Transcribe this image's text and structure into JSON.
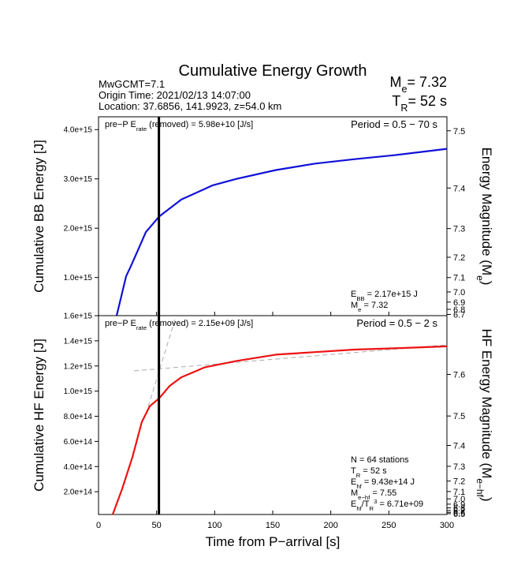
{
  "header": {
    "title": "Cumulative Energy Growth",
    "lines": [
      "MwGCMT=7.1",
      "Origin Time: 2021/02/13 14:07:00",
      "Location: 37.6856, 141.9923, z=54.0 km"
    ],
    "magnitude": [
      {
        "text": "M"
      },
      {
        "text": "e",
        "sub": true
      },
      {
        "text": "= 7.32"
      }
    ],
    "duration": [
      {
        "text": "T"
      },
      {
        "text": "R",
        "sub": true
      },
      {
        "text": "= 52 s"
      }
    ]
  },
  "chart_data": [
    {
      "type": "line",
      "ylabel": "Cumulative BB Energy [J]",
      "y2label": [
        {
          "text": "Energy Magnitude (M"
        },
        {
          "text": "e",
          "sub": true
        },
        {
          "text": ")"
        }
      ],
      "annotation_left": [
        {
          "text": "pre−P E"
        },
        {
          "text": "rate",
          "sub": true
        },
        {
          "text": " (removed) = 5.98e+10 [J/s]"
        }
      ],
      "annotation_right": "Period = 0.5 − 70 s",
      "notes": [
        [
          {
            "text": "E"
          },
          {
            "text": "BB",
            "sub": true
          },
          {
            "text": " = 2.17e+15 J"
          }
        ],
        [
          {
            "text": "M"
          },
          {
            "text": "e",
            "sub": true
          },
          {
            "text": " = 7.32"
          }
        ]
      ],
      "marker_x": 52,
      "xlim": [
        0,
        300
      ],
      "xticks": [
        0,
        50,
        100,
        150,
        200,
        250,
        300
      ],
      "ylim": [
        226000000000000,
        4260000000000000
      ],
      "yticks": [
        {
          "value": 1000000000000000,
          "label": "1.0e+15"
        },
        {
          "value": 2000000000000000,
          "label": "2.0e+15"
        },
        {
          "value": 3000000000000000,
          "label": "3.0e+15"
        },
        {
          "value": 4000000000000000,
          "label": "4.0e+15"
        }
      ],
      "y2scale": "energy-magnitude",
      "y2lim": [
        6.67,
        7.52
      ],
      "y2ticks": [
        6.7,
        6.8,
        6.9,
        {
          "value": 7,
          "label": "7.0"
        },
        7.1,
        7.2,
        7.3,
        7.4,
        7.5
      ],
      "series": [
        {
          "name": "BB",
          "color": "#1010d8",
          "x": [
            15.6,
            23.8,
            27.1,
            33.9,
            40.7,
            52.3,
            71.3,
            98.4,
            118.8,
            152.7,
            186.6,
            220.6,
            254.5,
            300
          ],
          "values": [
            226000000000000,
            1030000000000000,
            1190000000000000,
            1550000000000000,
            1920000000000000,
            2240000000000000,
            2580000000000000,
            2870000000000000,
            3000000000000000,
            3180000000000000,
            3310000000000000,
            3400000000000000,
            3480000000000000,
            3610000000000000
          ]
        }
      ]
    },
    {
      "type": "line",
      "xlabel": "Time from P−arrival [s]",
      "ylabel": "Cumulative HF Energy [J]",
      "y2label": [
        {
          "text": "HF Energy Magnitude (M"
        },
        {
          "text": "e−hf",
          "sub": true
        },
        {
          "text": ")"
        }
      ],
      "annotation_left": [
        {
          "text": "pre−P E"
        },
        {
          "text": "rate",
          "sub": true
        },
        {
          "text": " (removed) = 2.15e+09 [J/s]"
        }
      ],
      "annotation_right": "Period = 0.5 − 2 s",
      "notes": [
        [
          {
            "text": "N = 64 stations"
          }
        ],
        [
          {
            "text": "T"
          },
          {
            "text": "R",
            "sub": true
          },
          {
            "text": " = 52  s"
          }
        ],
        [
          {
            "text": "E"
          },
          {
            "text": "hf",
            "sub": true
          },
          {
            "text": " = 9.43e+14 J"
          }
        ],
        [
          {
            "text": "M"
          },
          {
            "text": "e−hf",
            "sub": true
          },
          {
            "text": " = 7.55"
          }
        ],
        [
          {
            "text": "E"
          },
          {
            "text": "hf",
            "sub": true
          },
          {
            "text": "/T"
          },
          {
            "text": "R",
            "sub": true
          },
          {
            "text": "3",
            "sup": true
          },
          {
            "text": " =  6.71e+09"
          }
        ]
      ],
      "marker_x": 52,
      "xlim": [
        0,
        300
      ],
      "xticks": [
        0,
        50,
        100,
        150,
        200,
        250,
        300
      ],
      "ylim": [
        19000000000000,
        1600000000000000
      ],
      "yticks": [
        {
          "value": 200000000000000,
          "label": "2.0e+14"
        },
        {
          "value": 400000000000000,
          "label": "4.0e+14"
        },
        {
          "value": 600000000000000,
          "label": "6.0e+14"
        },
        {
          "value": 800000000000000,
          "label": "8.0e+14"
        },
        {
          "value": 1000000000000000,
          "label": "1.0e+15"
        },
        {
          "value": 1200000000000000,
          "label": "1.2e+15"
        },
        {
          "value": 1400000000000000,
          "label": "1.4e+15"
        },
        {
          "value": 1600000000000000,
          "label": "1.6e+15"
        }
      ],
      "y2scale": "energy-magnitude",
      "y2lim": [
        6.41,
        7.7
      ],
      "y2ticks": [
        6.5,
        6.6,
        6.7,
        6.8,
        6.9,
        {
          "value": 7,
          "label": "7.0"
        },
        7.1,
        7.2,
        7.3,
        7.4,
        7.5,
        7.6
      ],
      "series": [
        {
          "name": "HF",
          "color": "#ee1111",
          "x": [
            12.2,
            20.4,
            29.2,
            37.3,
            44.1,
            52.3,
            61.1,
            71.3,
            91.6,
            118.8,
            152.7,
            186.6,
            220.6,
            254.5,
            300
          ],
          "values": [
            19000000000000,
            225000000000000,
            475000000000000,
            756000000000000,
            880000000000000,
            944000000000000,
            1040000000000000,
            1110000000000000,
            1190000000000000,
            1240000000000000,
            1290000000000000,
            1310000000000000,
            1330000000000000,
            1340000000000000,
            1356000000000000
          ]
        }
      ]
    }
  ]
}
